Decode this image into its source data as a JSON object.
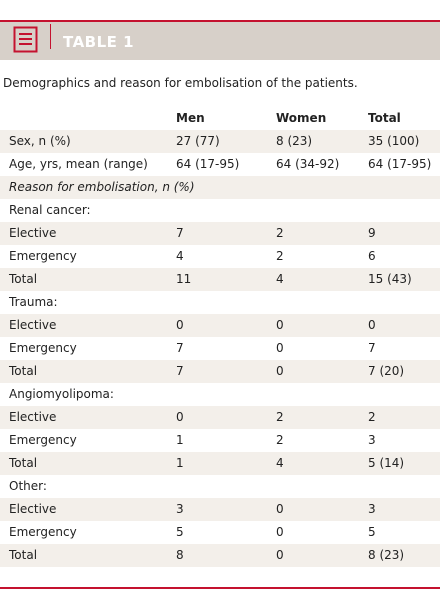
{
  "header": {
    "title": "TABLE 1"
  },
  "caption": "Demographics and reason for embolisation of the patients.",
  "table": {
    "columns": [
      "Men",
      "Women",
      "Total"
    ],
    "rows": [
      [
        "Sex, n (%)",
        "27 (77)",
        "8 (23)",
        "35 (100)"
      ],
      [
        "Age, yrs, mean (range)",
        "64 (17-95)",
        "64 (34-92)",
        "64 (17-95)"
      ],
      [
        "Reason for embolisation, n (%)"
      ],
      [
        "Renal cancer:"
      ],
      [
        "Elective",
        "7",
        "2",
        "9"
      ],
      [
        "Emergency",
        "4",
        "2",
        "6"
      ],
      [
        "Total",
        "11",
        "4",
        "15 (43)"
      ],
      [
        "Trauma:"
      ],
      [
        "Elective",
        "0",
        "0",
        "0"
      ],
      [
        "Emergency",
        "7",
        "0",
        "7"
      ],
      [
        "Total",
        "7",
        "0",
        "7 (20)"
      ],
      [
        "Angiomyolipoma:"
      ],
      [
        "Elective",
        "0",
        "2",
        "2"
      ],
      [
        "Emergency",
        "1",
        "2",
        "3"
      ],
      [
        "Total",
        "1",
        "4",
        "5 (14)"
      ],
      [
        "Other:"
      ],
      [
        "Elective",
        "3",
        "0",
        "3"
      ],
      [
        "Emergency",
        "5",
        "0",
        "5"
      ],
      [
        "Total",
        "8",
        "0",
        "8 (23)"
      ]
    ]
  }
}
